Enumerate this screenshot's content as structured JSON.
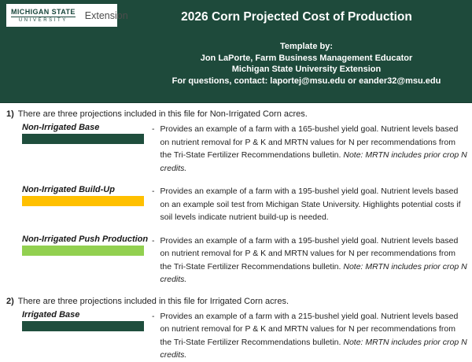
{
  "header": {
    "logo": {
      "line1": "MICHIGAN STATE",
      "line2": "UNIVERSITY",
      "right": "Extension"
    },
    "title": "2026 Corn Projected Cost of Production",
    "credits": {
      "line1": "Template by:",
      "line2": "Jon LaPorte, Farm Business Management Educator",
      "line3": "Michigan State University Extension",
      "line4": "For questions, contact: laportej@msu.edu or eander32@msu.edu"
    }
  },
  "misc": {
    "dash": "-"
  },
  "colors": {
    "header_bg": "#1e4a3b",
    "dark_green_bar": "#1f4e3d",
    "orange_bar": "#FFC000",
    "light_green_bar": "#92D050"
  },
  "sections": [
    {
      "number": "1)",
      "intro": "There are three projections included in this file for Non-Irrigated Corn acres.",
      "items": [
        {
          "label": "Non-Irrigated Base",
          "bar_color": "#1f4e3d",
          "desc": "Provides an example of a farm with a 165-bushel yield goal.  Nutrient levels based on nutrient removal for P & K and MRTN values for N per recommendations from the Tri-State Fertilizer Recommendations bulletin. ",
          "note": "Note: MRTN includes prior crop N credits."
        },
        {
          "label": "Non-Irrigated Build-Up",
          "bar_color": "#FFC000",
          "desc": "Provides an example of a farm with a 195-bushel yield goal. Nutrient levels based on an example soil test from Michigan State University. Highlights potential costs if soil levels indicate nutrient build-up is needed.",
          "note": ""
        },
        {
          "label": "Non-Irrigated Push Production",
          "bar_color": "#92D050",
          "desc": "Provides an example of a farm with a 195-bushel yield goal.  Nutrient levels based on nutrient removal for P & K and MRTN values for N per recommendations from the Tri-State Fertilizer Recommendations bulletin. ",
          "note": "Note: MRTN includes prior crop N credits."
        }
      ]
    },
    {
      "number": "2)",
      "intro": "There are three projections included in this file for Irrigated Corn acres.",
      "items": [
        {
          "label": "Irrigated Base",
          "bar_color": "#1f4e3d",
          "desc": "Provides an example of a farm with a 215-bushel yield goal.  Nutrient levels based on nutrient removal for P & K and MRTN values for N per recommendations from the Tri-State Fertilizer Recommendations bulletin. ",
          "note": "Note: MRTN includes prior crop N credits."
        }
      ]
    }
  ]
}
